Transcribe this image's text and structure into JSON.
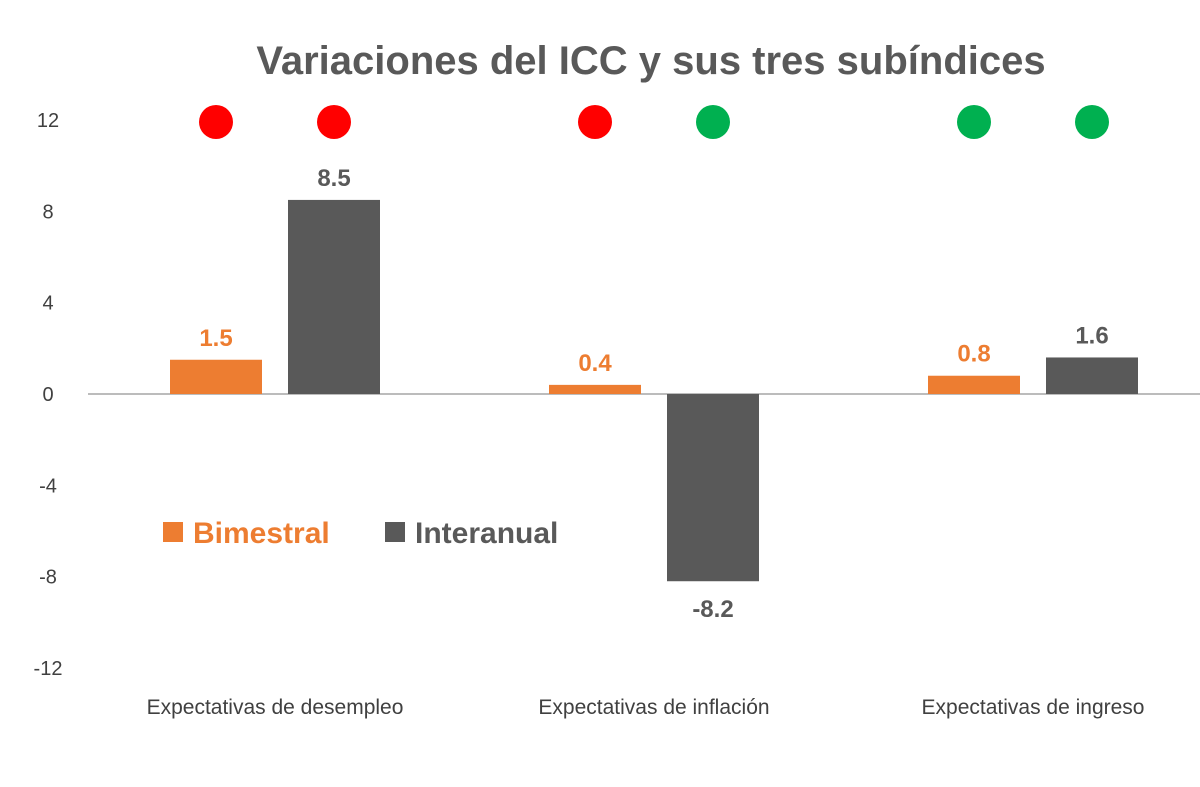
{
  "chart_data": {
    "type": "bar",
    "title": "Variaciones del ICC y sus tres subíndices",
    "xlabel": "",
    "ylabel": "",
    "ylim": [
      -12,
      12
    ],
    "yticks": [
      12,
      8,
      4,
      0,
      -4,
      -8,
      -12
    ],
    "categories": [
      "Expectativas de desempleo",
      "Expectativas de inflación",
      "Expectativas de ingreso"
    ],
    "series": [
      {
        "name": "Bimestral",
        "color": "#ed7d31",
        "values": [
          1.5,
          0.4,
          0.8
        ],
        "labels": [
          "1.5",
          "0.4",
          "0.8"
        ]
      },
      {
        "name": "Interanual",
        "color": "#595959",
        "values": [
          8.5,
          -8.2,
          1.6
        ],
        "labels": [
          "8.5",
          "-8.2",
          "1.6"
        ]
      }
    ],
    "indicators": [
      {
        "category": 0,
        "series": "Bimestral",
        "status": "red",
        "color": "#ff0000"
      },
      {
        "category": 0,
        "series": "Interanual",
        "status": "red",
        "color": "#ff0000"
      },
      {
        "category": 1,
        "series": "Bimestral",
        "status": "red",
        "color": "#ff0000"
      },
      {
        "category": 1,
        "series": "Interanual",
        "status": "green",
        "color": "#00b050"
      },
      {
        "category": 2,
        "series": "Bimestral",
        "status": "green",
        "color": "#00b050"
      },
      {
        "category": 2,
        "series": "Interanual",
        "status": "green",
        "color": "#00b050"
      }
    ],
    "legend": "middle-left",
    "grid": false
  }
}
